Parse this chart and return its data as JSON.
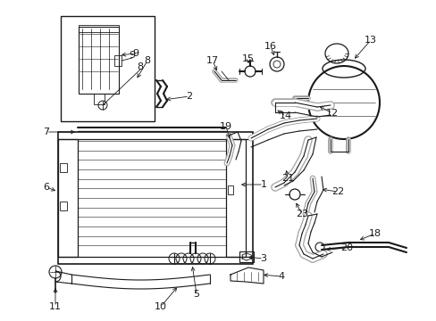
{
  "bg_color": "#ffffff",
  "line_color": "#1a1a1a",
  "fig_width": 4.89,
  "fig_height": 3.6,
  "dpi": 100,
  "imgW": 489,
  "imgH": 360
}
